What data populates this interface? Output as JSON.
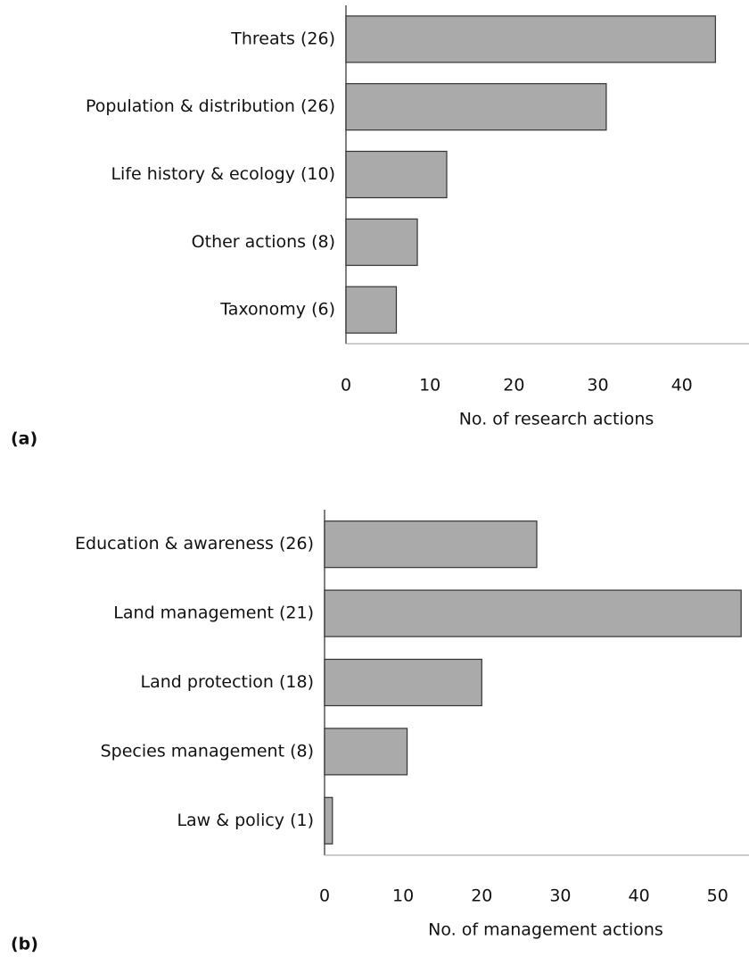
{
  "chart_data": [
    {
      "type": "bar",
      "orientation": "horizontal",
      "panel_label": "(a)",
      "categories": [
        "Threats (26)",
        "Population & distribution (26)",
        "Life history & ecology (10)",
        "Other actions (8)",
        "Taxonomy (6)"
      ],
      "values": [
        44,
        31,
        12,
        8.5,
        6
      ],
      "color": "#aaaaaa",
      "x_label": "No. of research actions",
      "xlim": [
        0,
        48
      ],
      "xticks": [
        0,
        10,
        20,
        30,
        40
      ]
    },
    {
      "type": "bar",
      "orientation": "horizontal",
      "panel_label": "(b)",
      "categories": [
        "Education & awareness (26)",
        "Land management  (21)",
        "Land protection (18)",
        "Species management (8)",
        "Law & policy (1)"
      ],
      "values": [
        27,
        53,
        20,
        10.5,
        1
      ],
      "color": "#aaaaaa",
      "x_label": "No. of management actions",
      "xlim": [
        0,
        54
      ],
      "xticks": [
        0,
        10,
        20,
        30,
        40,
        50
      ]
    }
  ]
}
